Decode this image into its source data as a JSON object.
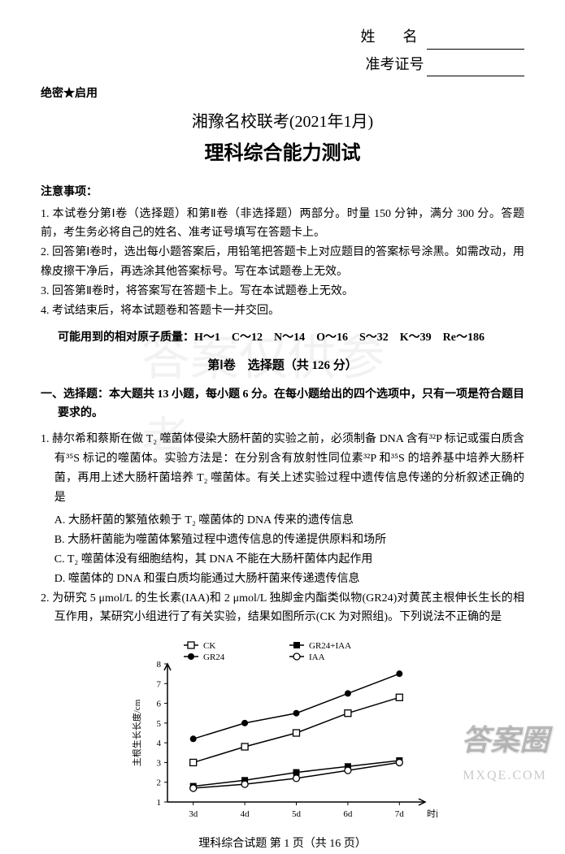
{
  "header": {
    "name_label": "姓　名",
    "ticket_label": "准考证号",
    "confidential": "绝密★启用"
  },
  "titles": {
    "main": "湘豫名校联考(2021年1月)",
    "sub": "理科综合能力测试"
  },
  "notice": {
    "title": "注意事项：",
    "items": [
      "1. 本试卷分第Ⅰ卷（选择题）和第Ⅱ卷（非选择题）两部分。时量 150 分钟，满分 300 分。答题前，考生务必将自己的姓名、准考证号填写在答题卡上。",
      "2. 回答第Ⅰ卷时，选出每小题答案后，用铅笔把答题卡上对应题目的答案标号涂黑。如需改动，用橡皮擦干净后，再选涂其他答案标号。写在本试题卷上无效。",
      "3. 回答第Ⅱ卷时，将答案写在答题卡上。写在本试题卷上无效。",
      "4. 考试结束后，将本试题卷和答题卡一并交回。"
    ],
    "atomic_mass": "可能用到的相对原子质量：H～1　C～12　N～14　O～16　S～32　K～39　Re～186"
  },
  "section": {
    "title": "第Ⅰ卷　选择题（共 126 分）"
  },
  "question_type": "一、选择题：本大题共 13 小题，每小题 6 分。在每小题给出的四个选项中，只有一项是符合题目要求的。",
  "questions": {
    "q1": {
      "text": "1. 赫尔希和蔡斯在做 T₂ 噬菌体侵染大肠杆菌的实验之前，必须制备 DNA 含有³²P 标记或蛋白质含有³⁵S 标记的噬菌体。实验方法是：在分别含有放射性同位素³²P 和³⁵S 的培养基中培养大肠杆菌，再用上述大肠杆菌培养 T₂ 噬菌体。有关上述实验过程中遗传信息传递的分析叙述正确的是",
      "options": {
        "A": "A. 大肠杆菌的繁殖依赖于 T₂ 噬菌体的 DNA 传来的遗传信息",
        "B": "B. 大肠杆菌能为噬菌体繁殖过程中遗传信息的传递提供原料和场所",
        "C": "C. T₂ 噬菌体没有细胞结构，其 DNA 不能在大肠杆菌体内起作用",
        "D": "D. 噬菌体的 DNA 和蛋白质均能通过大肠杆菌来传递遗传信息"
      }
    },
    "q2": {
      "text": "2. 为研究 5 μmol/L 的生长素(IAA)和 2 μmol/L 独脚金内酯类似物(GR24)对黄芪主根伸长生长的相互作用，某研究小组进行了有关实验，结果如图所示(CK 为对照组)。下列说法不正确的是"
    }
  },
  "chart": {
    "type": "line",
    "x_label": "时间/天",
    "y_label": "主根生长长度/cm",
    "x_ticks": [
      "3d",
      "4d",
      "5d",
      "6d",
      "7d"
    ],
    "y_ticks": [
      1,
      2,
      3,
      4,
      5,
      6,
      7,
      8
    ],
    "ylim": [
      1,
      8
    ],
    "series": [
      {
        "name": "CK",
        "marker": "open-square",
        "values": [
          3.0,
          3.8,
          4.5,
          5.5,
          6.3
        ],
        "color": "#000000"
      },
      {
        "name": "GR24",
        "marker": "filled-circle",
        "values": [
          4.2,
          5.0,
          5.5,
          6.5,
          7.5
        ],
        "color": "#000000"
      },
      {
        "name": "GR24+IAA",
        "marker": "filled-square",
        "values": [
          1.8,
          2.1,
          2.5,
          2.8,
          3.1
        ],
        "color": "#000000"
      },
      {
        "name": "IAA",
        "marker": "open-circle",
        "values": [
          1.7,
          1.9,
          2.2,
          2.6,
          3.0
        ],
        "color": "#000000"
      }
    ],
    "legend_position": "top",
    "background_color": "#ffffff",
    "axis_color": "#000000",
    "font_size": 11
  },
  "footer": "理科综合试题 第 1 页（共 16 页）",
  "watermark": {
    "center": "答案仅供参考",
    "bottom_main": "答案圈",
    "bottom_sub": "MXQE.COM"
  }
}
